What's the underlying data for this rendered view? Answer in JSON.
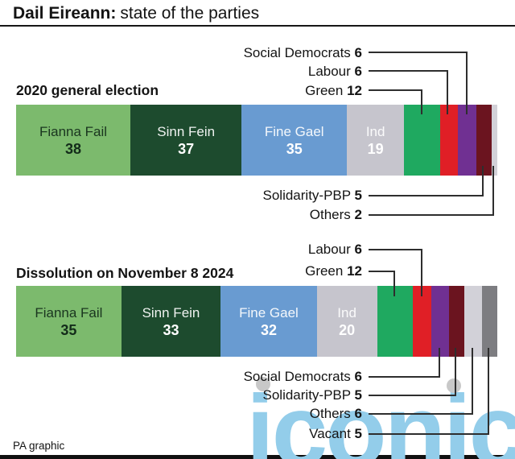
{
  "title": {
    "bold": "Dail Eireann:",
    "regular": "state of the parties"
  },
  "footer": {
    "credit": "PA graphic"
  },
  "watermark": {
    "text": "iconic"
  },
  "colors": {
    "text": "#141414",
    "divider": "#161616",
    "leader_line": "#2e2e2e",
    "watermark_text": "#93cdea",
    "watermark_dot": "#c8c8c8"
  },
  "chart_data": [
    {
      "type": "bar",
      "title": "2020 general election",
      "total_seats": 160,
      "series": [
        {
          "name": "Fianna Fail",
          "seats": 38,
          "color": "#7cba6d",
          "text_color": "#132c1a",
          "label": "inside"
        },
        {
          "name": "Sinn Fein",
          "seats": 37,
          "color": "#1d4b2e",
          "text_color": "#ffffff",
          "label": "inside"
        },
        {
          "name": "Fine Gael",
          "seats": 35,
          "color": "#699bd1",
          "text_color": "#ffffff",
          "label": "inside"
        },
        {
          "name": "Ind",
          "seats": 19,
          "color": "#c6c5cd",
          "text_color": "#ffffff",
          "label": "inside"
        },
        {
          "name": "Green",
          "seats": 12,
          "color": "#1fa960",
          "text_color": "#ffffff",
          "label": "callout-above"
        },
        {
          "name": "Labour",
          "seats": 6,
          "color": "#e01f26",
          "text_color": "#ffffff",
          "label": "callout-above"
        },
        {
          "name": "Social Democrats",
          "seats": 6,
          "color": "#703092",
          "text_color": "#ffffff",
          "label": "callout-above"
        },
        {
          "name": "Solidarity-PBP",
          "seats": 5,
          "color": "#6b141f",
          "text_color": "#ffffff",
          "label": "callout-below"
        },
        {
          "name": "Others",
          "seats": 2,
          "color": "#d2d1d8",
          "text_color": "#ffffff",
          "label": "callout-below"
        }
      ]
    },
    {
      "type": "bar",
      "title": "Dissolution on November 8 2024",
      "total_seats": 160,
      "series": [
        {
          "name": "Fianna Fail",
          "seats": 35,
          "color": "#7cba6d",
          "text_color": "#132c1a",
          "label": "inside"
        },
        {
          "name": "Sinn Fein",
          "seats": 33,
          "color": "#1d4b2e",
          "text_color": "#ffffff",
          "label": "inside"
        },
        {
          "name": "Fine Gael",
          "seats": 32,
          "color": "#699bd1",
          "text_color": "#ffffff",
          "label": "inside"
        },
        {
          "name": "Ind",
          "seats": 20,
          "color": "#c6c5cd",
          "text_color": "#ffffff",
          "label": "inside"
        },
        {
          "name": "Green",
          "seats": 12,
          "color": "#1fa960",
          "text_color": "#ffffff",
          "label": "callout-above"
        },
        {
          "name": "Labour",
          "seats": 6,
          "color": "#e01f26",
          "text_color": "#ffffff",
          "label": "callout-above"
        },
        {
          "name": "Social Democrats",
          "seats": 6,
          "color": "#703092",
          "text_color": "#ffffff",
          "label": "callout-below"
        },
        {
          "name": "Solidarity-PBP",
          "seats": 5,
          "color": "#6b141f",
          "text_color": "#ffffff",
          "label": "callout-below"
        },
        {
          "name": "Others",
          "seats": 6,
          "color": "#d2d1d8",
          "text_color": "#ffffff",
          "label": "callout-below"
        },
        {
          "name": "Vacant",
          "seats": 5,
          "color": "#7d7d81",
          "text_color": "#ffffff",
          "label": "callout-below"
        }
      ]
    }
  ],
  "callouts": {
    "c2020_above": [
      {
        "label": "Social Democrats",
        "value": "6"
      },
      {
        "label": "Labour",
        "value": "6"
      },
      {
        "label": "Green",
        "value": "12"
      }
    ],
    "c2020_below": [
      {
        "label": "Solidarity-PBP",
        "value": "5"
      },
      {
        "label": "Others",
        "value": "2"
      }
    ],
    "c2024_above": [
      {
        "label": "Labour",
        "value": "6"
      },
      {
        "label": "Green",
        "value": "12"
      }
    ],
    "c2024_below": [
      {
        "label": "Social Democrats",
        "value": "6"
      },
      {
        "label": "Solidarity-PBP",
        "value": "5"
      },
      {
        "label": "Others",
        "value": "6"
      },
      {
        "label": "Vacant",
        "value": "5"
      }
    ]
  }
}
